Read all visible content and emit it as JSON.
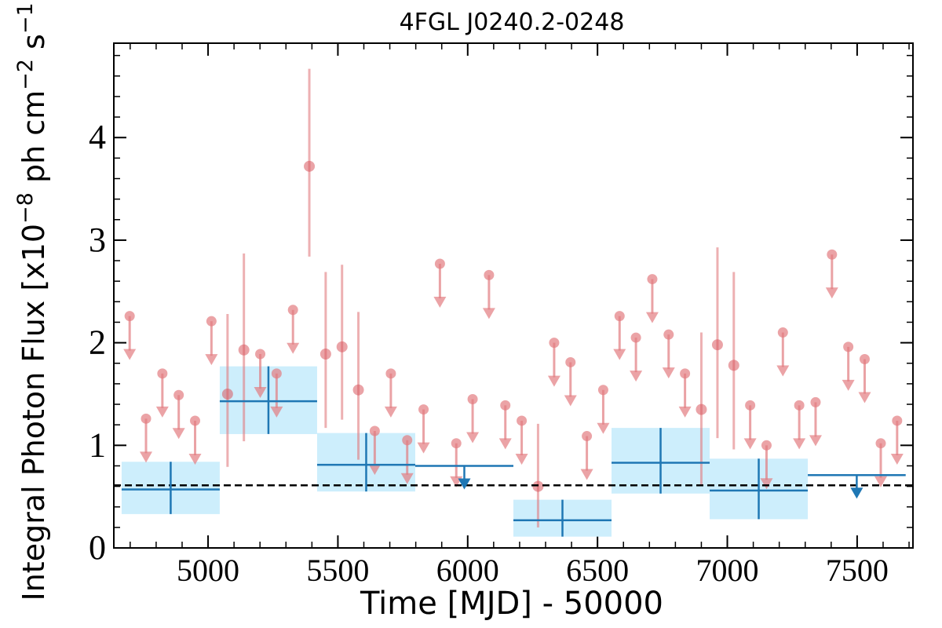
{
  "chart_data": {
    "type": "lightcurve",
    "title": "4FGL J0240.2-0248",
    "xlabel": "Time [MJD] - 50000",
    "ylabel": [
      "Integral Photon Flux [x10",
      "−8",
      " ph cm",
      "−2",
      " s",
      "−1",
      "]"
    ],
    "xlim": [
      4637,
      7715
    ],
    "ylim": [
      0,
      4.92
    ],
    "xticks": [
      5000,
      5500,
      6000,
      6500,
      7000,
      7500
    ],
    "yticks": [
      0,
      1,
      2,
      3,
      4
    ],
    "xminor": 100,
    "yminor": 0.2,
    "mean": 0.61,
    "mean_color": "#000000",
    "series": [
      {
        "color": "#e27c80",
        "x": [
          4698,
          4761,
          4824,
          4887,
          4950,
          5013,
          5075,
          5138,
          5201,
          5264,
          5327,
          5390,
          5453,
          5516,
          5579,
          5642,
          5704,
          5767,
          5830,
          5893,
          5956,
          6019,
          6082,
          6145,
          6208,
          6271,
          6333,
          6396,
          6459,
          6522,
          6585,
          6648,
          6711,
          6774,
          6837,
          6900,
          6962,
          7025,
          7088,
          7151,
          7214,
          7277,
          7340,
          7403,
          7466,
          7529,
          7591,
          7654
        ],
        "values": [
          2.26,
          1.26,
          1.7,
          1.49,
          1.24,
          2.21,
          1.5,
          1.93,
          1.89,
          1.7,
          2.32,
          3.72,
          1.89,
          1.96,
          1.54,
          1.14,
          1.7,
          1.05,
          1.35,
          2.77,
          1.02,
          1.45,
          2.66,
          1.39,
          1.24,
          0.6,
          2.0,
          1.81,
          1.09,
          1.54,
          2.26,
          2.05,
          2.62,
          2.08,
          1.7,
          1.35,
          1.98,
          1.78,
          1.39,
          1.0,
          2.1,
          1.39,
          1.42,
          2.86,
          1.96,
          1.84,
          1.02,
          1.24
        ],
        "upper_limit": [
          true,
          true,
          true,
          true,
          true,
          true,
          false,
          false,
          true,
          true,
          true,
          false,
          false,
          false,
          false,
          true,
          true,
          true,
          true,
          true,
          true,
          true,
          true,
          true,
          true,
          false,
          true,
          true,
          true,
          true,
          true,
          true,
          true,
          true,
          true,
          false,
          false,
          false,
          true,
          true,
          true,
          true,
          true,
          true,
          true,
          true,
          true,
          true
        ],
        "lower": [
          null,
          null,
          null,
          null,
          null,
          null,
          0.79,
          1.04,
          null,
          null,
          null,
          2.84,
          1.17,
          1.25,
          0.86,
          null,
          null,
          null,
          null,
          null,
          null,
          null,
          null,
          null,
          null,
          0.2,
          null,
          null,
          null,
          null,
          null,
          null,
          null,
          null,
          null,
          0.62,
          1.07,
          0.96,
          null,
          null,
          null,
          null,
          null,
          null,
          null,
          null,
          null,
          null
        ],
        "upper": [
          null,
          null,
          null,
          null,
          null,
          null,
          2.28,
          2.87,
          null,
          null,
          null,
          4.67,
          2.69,
          2.76,
          2.3,
          null,
          null,
          null,
          null,
          null,
          null,
          null,
          null,
          null,
          null,
          1.21,
          null,
          null,
          null,
          null,
          null,
          null,
          null,
          null,
          null,
          2.1,
          2.93,
          2.69,
          null,
          null,
          null,
          null,
          null,
          null,
          null,
          null,
          null,
          null
        ]
      },
      {
        "color": "#1f77b4",
        "band_color": "#cdeefc",
        "edges": [
          4667,
          5045,
          5420,
          5798,
          6176,
          6554,
          6932,
          7310,
          7687
        ],
        "values": [
          0.57,
          1.43,
          0.81,
          0.8,
          0.27,
          0.83,
          0.56,
          0.71
        ],
        "upper_limit": [
          false,
          false,
          false,
          true,
          false,
          false,
          false,
          true
        ],
        "lower": [
          0.33,
          1.11,
          0.55,
          null,
          0.11,
          0.53,
          0.28,
          null
        ],
        "upper": [
          0.84,
          1.77,
          1.12,
          null,
          0.47,
          1.17,
          0.87,
          null
        ]
      }
    ]
  }
}
